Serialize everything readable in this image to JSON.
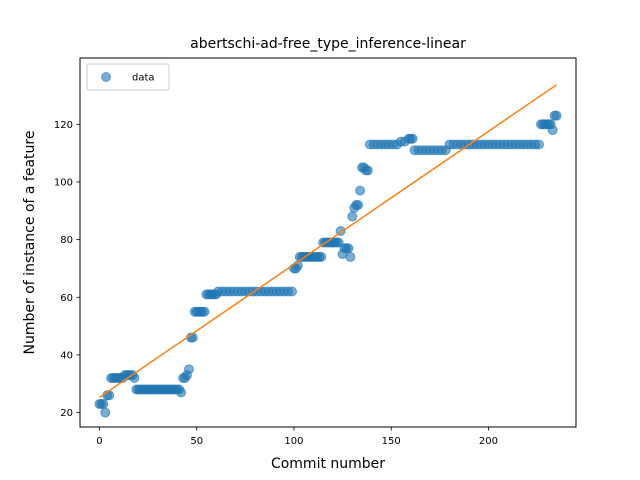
{
  "chart_data": {
    "type": "scatter",
    "title": "abertschi-ad-free_type_inference-linear",
    "xlabel": "Commit number",
    "ylabel": "Number of instance of a feature",
    "xlim": [
      -10,
      245
    ],
    "ylim": [
      15,
      143
    ],
    "x_ticks": [
      0,
      50,
      100,
      150,
      200
    ],
    "y_ticks": [
      20,
      40,
      60,
      80,
      100,
      120
    ],
    "legend": {
      "position": "top-left",
      "entries": [
        "data"
      ]
    },
    "grid": false,
    "colors": {
      "data": "#1f77b4",
      "fit": "#ff7f0e"
    },
    "series": [
      {
        "name": "data",
        "style": "markers",
        "points": [
          [
            0,
            23
          ],
          [
            1,
            23
          ],
          [
            2,
            23
          ],
          [
            3,
            20
          ],
          [
            4,
            26
          ],
          [
            5,
            26
          ],
          [
            6,
            32
          ],
          [
            7,
            32
          ],
          [
            8,
            32
          ],
          [
            9,
            32
          ],
          [
            10,
            32
          ],
          [
            11,
            32
          ],
          [
            12,
            32
          ],
          [
            13,
            33
          ],
          [
            14,
            33
          ],
          [
            15,
            33
          ],
          [
            16,
            33
          ],
          [
            17,
            33
          ],
          [
            18,
            32
          ],
          [
            19,
            28
          ],
          [
            20,
            28
          ],
          [
            21,
            28
          ],
          [
            22,
            28
          ],
          [
            23,
            28
          ],
          [
            24,
            28
          ],
          [
            25,
            28
          ],
          [
            26,
            28
          ],
          [
            27,
            28
          ],
          [
            28,
            28
          ],
          [
            29,
            28
          ],
          [
            30,
            28
          ],
          [
            31,
            28
          ],
          [
            32,
            28
          ],
          [
            33,
            28
          ],
          [
            34,
            28
          ],
          [
            35,
            28
          ],
          [
            36,
            28
          ],
          [
            37,
            28
          ],
          [
            38,
            28
          ],
          [
            39,
            28
          ],
          [
            40,
            28
          ],
          [
            41,
            28
          ],
          [
            42,
            27
          ],
          [
            43,
            32
          ],
          [
            44,
            32
          ],
          [
            45,
            33
          ],
          [
            46,
            35
          ],
          [
            47,
            46
          ],
          [
            48,
            46
          ],
          [
            49,
            55
          ],
          [
            50,
            55
          ],
          [
            51,
            55
          ],
          [
            52,
            55
          ],
          [
            53,
            55
          ],
          [
            54,
            55
          ],
          [
            55,
            61
          ],
          [
            56,
            61
          ],
          [
            57,
            61
          ],
          [
            58,
            61
          ],
          [
            59,
            61
          ],
          [
            60,
            61
          ],
          [
            61,
            62
          ],
          [
            63,
            62
          ],
          [
            65,
            62
          ],
          [
            67,
            62
          ],
          [
            69,
            62
          ],
          [
            71,
            62
          ],
          [
            73,
            62
          ],
          [
            75,
            62
          ],
          [
            77,
            62
          ],
          [
            79,
            62
          ],
          [
            81,
            62
          ],
          [
            83,
            62
          ],
          [
            85,
            62
          ],
          [
            87,
            62
          ],
          [
            89,
            62
          ],
          [
            91,
            62
          ],
          [
            93,
            62
          ],
          [
            95,
            62
          ],
          [
            97,
            62
          ],
          [
            99,
            62
          ],
          [
            100,
            70
          ],
          [
            101,
            70
          ],
          [
            102,
            71
          ],
          [
            103,
            74
          ],
          [
            104,
            74
          ],
          [
            105,
            74
          ],
          [
            106,
            74
          ],
          [
            107,
            74
          ],
          [
            108,
            74
          ],
          [
            109,
            74
          ],
          [
            110,
            74
          ],
          [
            111,
            74
          ],
          [
            112,
            74
          ],
          [
            113,
            74
          ],
          [
            114,
            74
          ],
          [
            115,
            79
          ],
          [
            116,
            79
          ],
          [
            117,
            79
          ],
          [
            118,
            79
          ],
          [
            119,
            79
          ],
          [
            120,
            79
          ],
          [
            121,
            79
          ],
          [
            122,
            79
          ],
          [
            123,
            79
          ],
          [
            124,
            83
          ],
          [
            125,
            75
          ],
          [
            126,
            77
          ],
          [
            127,
            77
          ],
          [
            128,
            77
          ],
          [
            129,
            74
          ],
          [
            130,
            88
          ],
          [
            131,
            91
          ],
          [
            132,
            92
          ],
          [
            133,
            92
          ],
          [
            134,
            97
          ],
          [
            135,
            105
          ],
          [
            136,
            105
          ],
          [
            137,
            104
          ],
          [
            138,
            104
          ],
          [
            139,
            113
          ],
          [
            141,
            113
          ],
          [
            143,
            113
          ],
          [
            145,
            113
          ],
          [
            147,
            113
          ],
          [
            149,
            113
          ],
          [
            151,
            113
          ],
          [
            153,
            113
          ],
          [
            155,
            114
          ],
          [
            157,
            114
          ],
          [
            159,
            115
          ],
          [
            160,
            115
          ],
          [
            161,
            115
          ],
          [
            162,
            111
          ],
          [
            164,
            111
          ],
          [
            166,
            111
          ],
          [
            168,
            111
          ],
          [
            170,
            111
          ],
          [
            172,
            111
          ],
          [
            174,
            111
          ],
          [
            176,
            111
          ],
          [
            178,
            111
          ],
          [
            180,
            113
          ],
          [
            182,
            113
          ],
          [
            184,
            113
          ],
          [
            186,
            113
          ],
          [
            188,
            113
          ],
          [
            190,
            113
          ],
          [
            192,
            113
          ],
          [
            194,
            113
          ],
          [
            196,
            113
          ],
          [
            198,
            113
          ],
          [
            200,
            113
          ],
          [
            202,
            113
          ],
          [
            204,
            113
          ],
          [
            206,
            113
          ],
          [
            208,
            113
          ],
          [
            210,
            113
          ],
          [
            212,
            113
          ],
          [
            214,
            113
          ],
          [
            216,
            113
          ],
          [
            218,
            113
          ],
          [
            220,
            113
          ],
          [
            222,
            113
          ],
          [
            224,
            113
          ],
          [
            226,
            113
          ],
          [
            227,
            120
          ],
          [
            228,
            120
          ],
          [
            229,
            120
          ],
          [
            230,
            120
          ],
          [
            231,
            120
          ],
          [
            232,
            120
          ],
          [
            233,
            118
          ],
          [
            234,
            123
          ],
          [
            235,
            123
          ]
        ]
      },
      {
        "style": "line",
        "points": [
          [
            0,
            25.3
          ],
          [
            235,
            133.7
          ]
        ]
      }
    ]
  }
}
